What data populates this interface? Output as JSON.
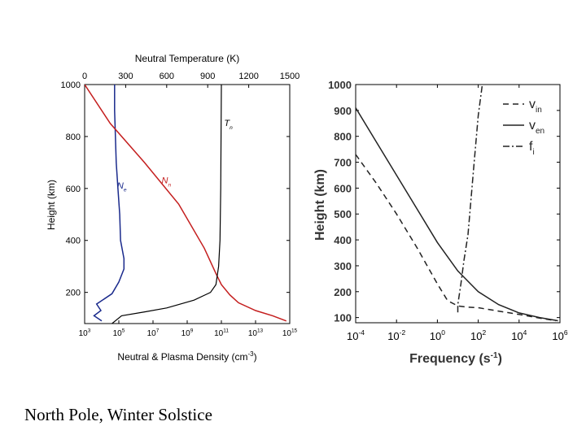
{
  "caption": "North Pole, Winter Solstice",
  "colors": {
    "ne": "#1a2a8c",
    "nn": "#c41e1e",
    "tn": "#000000",
    "axis": "#000000"
  },
  "chart_data": [
    {
      "type": "line",
      "title": "",
      "ylabel": "Height (km)",
      "xlabel": "Neutral & Plasma Density (cm",
      "xlabel_sup": "-3",
      "xlabel_end": ")",
      "top_xlabel": "Neutral Temperature (K)",
      "ylim": [
        80,
        1000
      ],
      "xlim_log": [
        3,
        15
      ],
      "top_xlim": [
        0,
        1500
      ],
      "yticks": [
        200,
        400,
        600,
        800,
        1000
      ],
      "xticks": [
        {
          "exp": 3,
          "label": "10",
          "sup": "3"
        },
        {
          "exp": 5,
          "label": "10",
          "sup": "5"
        },
        {
          "exp": 7,
          "label": "10",
          "sup": "7"
        },
        {
          "exp": 9,
          "label": "10",
          "sup": "9"
        },
        {
          "exp": 11,
          "label": "10",
          "sup": "11"
        },
        {
          "exp": 13,
          "label": "10",
          "sup": "13"
        },
        {
          "exp": 15,
          "label": "10",
          "sup": "15"
        }
      ],
      "top_xticks": [
        0,
        300,
        600,
        900,
        1200,
        1500
      ],
      "series": [
        {
          "key": "ne",
          "name": "N",
          "sub": "e",
          "axis": "bottom",
          "label_pos": [
            4.9,
            600
          ],
          "points": [
            [
              4.0,
              90
            ],
            [
              3.55,
              110
            ],
            [
              3.95,
              130
            ],
            [
              3.7,
              155
            ],
            [
              4.6,
              195
            ],
            [
              5.0,
              240
            ],
            [
              5.3,
              290
            ],
            [
              5.3,
              330
            ],
            [
              5.1,
              400
            ],
            [
              5.05,
              500
            ],
            [
              4.95,
              600
            ],
            [
              4.85,
              700
            ],
            [
              4.8,
              800
            ],
            [
              4.75,
              900
            ],
            [
              4.75,
              1000
            ]
          ]
        },
        {
          "key": "nn",
          "name": "N",
          "sub": "n",
          "axis": "bottom",
          "label_pos": [
            7.5,
            620
          ],
          "points": [
            [
              3.0,
              1000
            ],
            [
              4.5,
              850
            ],
            [
              6.5,
              700
            ],
            [
              8.5,
              540
            ],
            [
              10.0,
              370
            ],
            [
              10.7,
              270
            ],
            [
              11.0,
              230
            ],
            [
              11.5,
              190
            ],
            [
              12.0,
              160
            ],
            [
              13.0,
              130
            ],
            [
              14.0,
              110
            ],
            [
              14.8,
              90
            ]
          ]
        },
        {
          "key": "tn",
          "name": "T",
          "sub": "n",
          "axis": "top",
          "label_pos": [
            1020,
            840
          ],
          "points": [
            [
              200,
              80
            ],
            [
              270,
              110
            ],
            [
              440,
              125
            ],
            [
              600,
              140
            ],
            [
              800,
              170
            ],
            [
              920,
              200
            ],
            [
              960,
              230
            ],
            [
              980,
              300
            ],
            [
              990,
              400
            ],
            [
              995,
              600
            ],
            [
              1000,
              1000
            ]
          ]
        }
      ]
    },
    {
      "type": "line",
      "title": "",
      "ylabel": "Height (km)",
      "xlabel": "Frequency (s",
      "xlabel_sup": "-1",
      "xlabel_end": ")",
      "ylim": [
        80,
        1000
      ],
      "xlim_log": [
        -4,
        6
      ],
      "yticks": [
        100,
        200,
        300,
        400,
        500,
        600,
        700,
        800,
        900,
        1000
      ],
      "xticks": [
        {
          "exp": -4,
          "label": "10",
          "sup": "-4"
        },
        {
          "exp": -2,
          "label": "10",
          "sup": "-2"
        },
        {
          "exp": 0,
          "label": "10",
          "sup": "0"
        },
        {
          "exp": 2,
          "label": "10",
          "sup": "2"
        },
        {
          "exp": 4,
          "label": "10",
          "sup": "4"
        },
        {
          "exp": 6,
          "label": "10",
          "sup": "6"
        }
      ],
      "legend": "top-right",
      "series": [
        {
          "key": "vin",
          "name": "v",
          "sub": "in",
          "dash": "dashed",
          "points": [
            [
              -4,
              730
            ],
            [
              -3,
              620
            ],
            [
              -2,
              500
            ],
            [
              -1,
              370
            ],
            [
              0,
              230
            ],
            [
              0.5,
              165
            ],
            [
              1,
              145
            ],
            [
              1.5,
              140
            ],
            [
              2,
              138
            ],
            [
              3,
              125
            ],
            [
              4,
              112
            ],
            [
              5,
              98
            ],
            [
              5.8,
              88
            ]
          ]
        },
        {
          "key": "ven",
          "name": "v",
          "sub": "en",
          "dash": "solid",
          "points": [
            [
              -4,
              910
            ],
            [
              -3,
              780
            ],
            [
              -2,
              650
            ],
            [
              -1,
              520
            ],
            [
              0,
              390
            ],
            [
              1,
              280
            ],
            [
              1.5,
              240
            ],
            [
              2,
              200
            ],
            [
              3,
              150
            ],
            [
              4,
              118
            ],
            [
              5,
              100
            ],
            [
              5.9,
              88
            ]
          ]
        },
        {
          "key": "fi",
          "name": "f",
          "sub": "i",
          "dash": "dashdot",
          "points": [
            [
              1.0,
              120
            ],
            [
              1.0,
              150
            ],
            [
              1.15,
              230
            ],
            [
              1.3,
              320
            ],
            [
              1.5,
              420
            ],
            [
              1.65,
              560
            ],
            [
              1.8,
              700
            ],
            [
              2.0,
              880
            ],
            [
              2.2,
              1000
            ]
          ]
        }
      ]
    }
  ]
}
